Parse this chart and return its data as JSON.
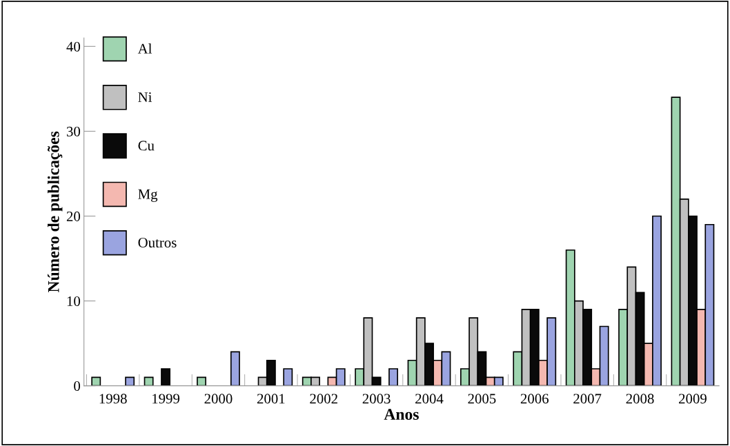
{
  "chart_data": {
    "type": "bar",
    "xlabel": "Anos",
    "ylabel": "Número de publicações",
    "categories": [
      "1998",
      "1999",
      "2000",
      "2001",
      "2002",
      "2003",
      "2004",
      "2005",
      "2006",
      "2007",
      "2008",
      "2009"
    ],
    "series": [
      {
        "name": "Al",
        "color": "#9fd4b0",
        "values": [
          1,
          1,
          1,
          null,
          1,
          2,
          3,
          2,
          4,
          16,
          9,
          34
        ]
      },
      {
        "name": "Ni",
        "color": "#c0c0c0",
        "values": [
          null,
          null,
          null,
          1,
          1,
          8,
          8,
          8,
          9,
          10,
          14,
          22
        ]
      },
      {
        "name": "Cu",
        "color": "#0a0a0a",
        "values": [
          null,
          2,
          null,
          3,
          null,
          1,
          5,
          4,
          9,
          9,
          11,
          20
        ]
      },
      {
        "name": "Mg",
        "color": "#f4b8b0",
        "values": [
          null,
          null,
          null,
          null,
          1,
          null,
          3,
          1,
          3,
          2,
          5,
          9
        ]
      },
      {
        "name": "Outros",
        "color": "#9aa4e0",
        "values": [
          1,
          null,
          4,
          2,
          2,
          2,
          4,
          1,
          8,
          7,
          20,
          19
        ]
      }
    ],
    "ylim": [
      0,
      41
    ],
    "yticks": [
      0,
      10,
      20,
      30,
      40
    ],
    "grid": false,
    "legend": "top left"
  }
}
